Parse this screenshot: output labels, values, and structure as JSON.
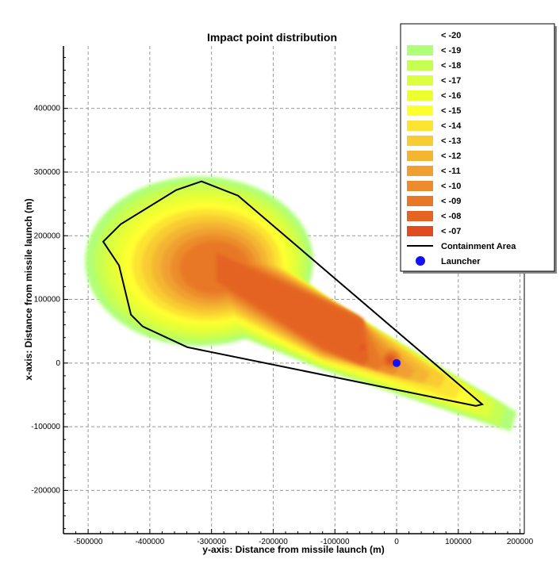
{
  "chart_data": {
    "type": "heatmap",
    "title": "Impact point distribution",
    "xlabel": "y-axis: Distance from missile launch (m)",
    "ylabel": "x-axis: Distance from missile launch (m)",
    "xlim": [
      -540000,
      207000
    ],
    "ylim": [
      -268000,
      498000
    ],
    "xticks": [
      -500000,
      -400000,
      -300000,
      -200000,
      -100000,
      0,
      100000,
      200000
    ],
    "yticks": [
      -200000,
      -100000,
      0,
      100000,
      200000,
      300000,
      400000
    ],
    "xtick_labels": [
      "-500000",
      "-400000",
      "-300000",
      "-200000",
      "-100000",
      "0",
      "100000",
      "200000"
    ],
    "ytick_labels": [
      "-200000",
      "-100000",
      "0",
      "100000",
      "200000",
      "300000",
      "400000"
    ],
    "grid": true,
    "legend_position": "top-right",
    "levels": [
      {
        "label": "< -20",
        "color": null
      },
      {
        "label": "< -19",
        "color": "#b0ff78"
      },
      {
        "label": "< -18",
        "color": "#c6ff52"
      },
      {
        "label": "< -17",
        "color": "#dcff40"
      },
      {
        "label": "< -16",
        "color": "#eeff30"
      },
      {
        "label": "< -15",
        "color": "#ffff30"
      },
      {
        "label": "< -14",
        "color": "#fce432"
      },
      {
        "label": "< -13",
        "color": "#f8cc32"
      },
      {
        "label": "< -12",
        "color": "#f4b630"
      },
      {
        "label": "< -11",
        "color": "#f0a030"
      },
      {
        "label": "< -10",
        "color": "#ec8c2c"
      },
      {
        "label": "< -09",
        "color": "#e87828"
      },
      {
        "label": "< -08",
        "color": "#e46424"
      },
      {
        "label": "< -07",
        "color": "#e04c20"
      }
    ],
    "containment_area": {
      "label": "Containment Area",
      "color": "#000000",
      "polygon": [
        [
          -475600,
          190700
        ],
        [
          -447300,
          218000
        ],
        [
          -357300,
          271700
        ],
        [
          -316200,
          285400
        ],
        [
          -257000,
          262900
        ],
        [
          138800,
          -64800
        ],
        [
          128500,
          -67300
        ],
        [
          -339300,
          24900
        ],
        [
          -411300,
          57300
        ],
        [
          -430600,
          76000
        ],
        [
          -449900,
          153300
        ]
      ]
    },
    "launcher": {
      "label": "Launcher",
      "color": "#1010ff",
      "x": 0,
      "y": 0
    }
  }
}
